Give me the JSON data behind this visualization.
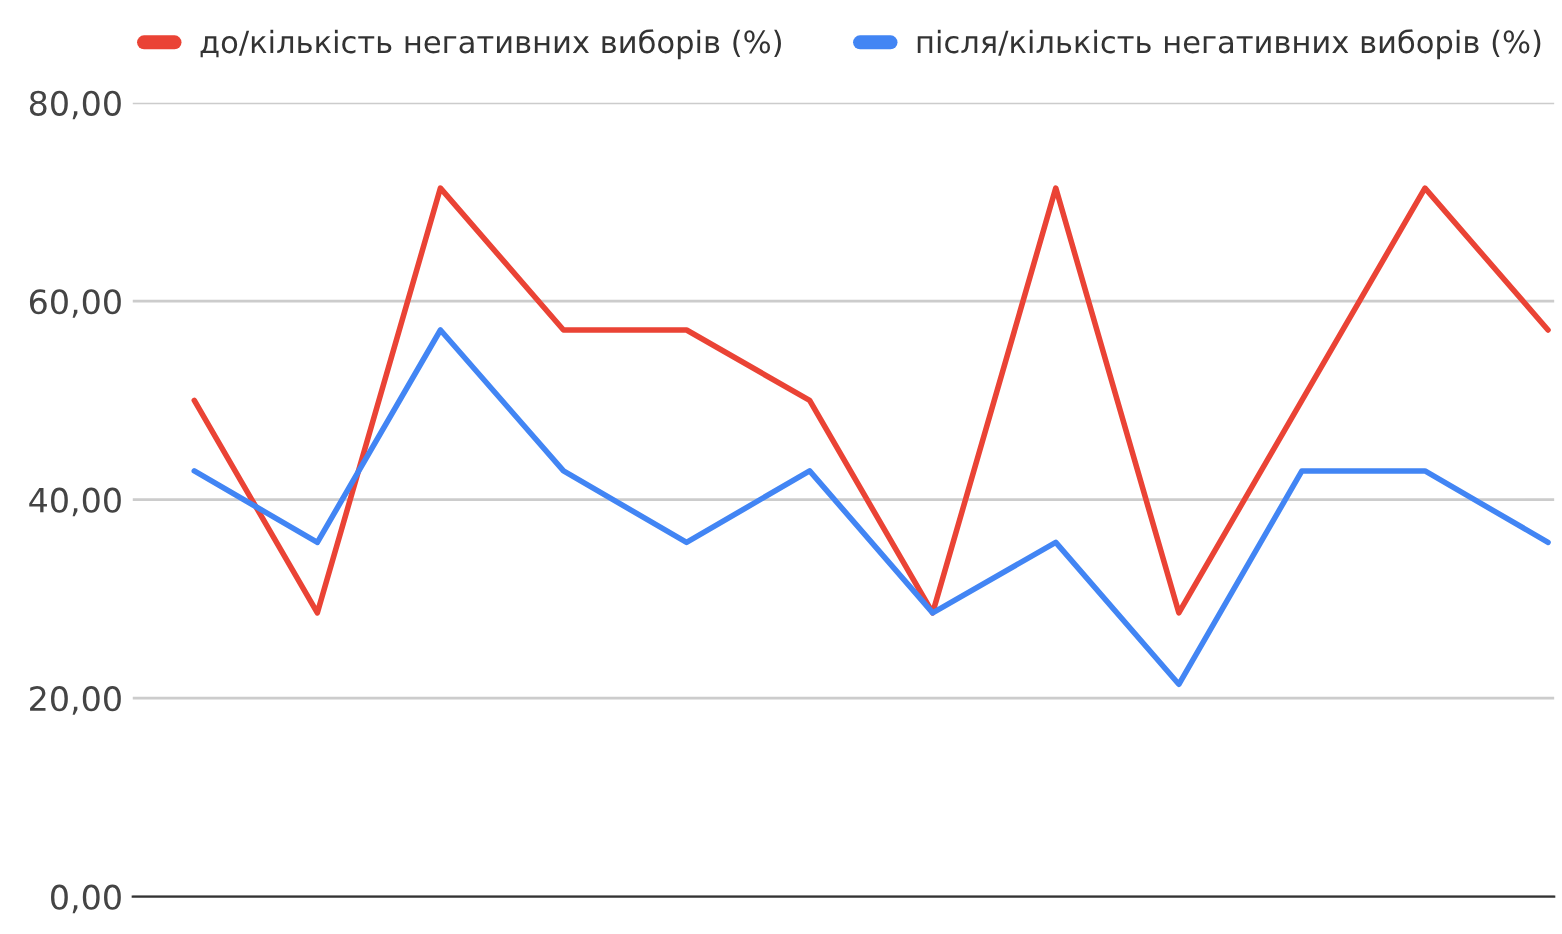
{
  "chart_data": {
    "type": "line",
    "categories": [
      null,
      null,
      null,
      null,
      null,
      null,
      null,
      null,
      null,
      null,
      null,
      null
    ],
    "series": [
      {
        "name": "до/кількість негативних виборів (%)",
        "color": "#ea4335",
        "values": [
          50,
          28.6,
          71.4,
          57.1,
          57.1,
          50,
          28.6,
          71.4,
          28.6,
          50,
          71.4,
          57.1
        ]
      },
      {
        "name": "після/кількість негативних виборів (%)",
        "color": "#4285f4",
        "values": [
          42.9,
          35.7,
          57.1,
          42.9,
          35.7,
          42.9,
          28.6,
          35.7,
          21.4,
          42.9,
          42.9,
          35.7
        ]
      }
    ],
    "ylim": [
      0,
      80
    ],
    "yticks": [
      {
        "value": 0,
        "label": "0,00"
      },
      {
        "value": 20,
        "label": "20,00"
      },
      {
        "value": 40,
        "label": "40,00"
      },
      {
        "value": 60,
        "label": "60,00"
      },
      {
        "value": 80,
        "label": "80,00"
      }
    ],
    "grid": "y",
    "legend": "top",
    "tick_labels": "y",
    "marker": "none",
    "line_style": "solid"
  }
}
